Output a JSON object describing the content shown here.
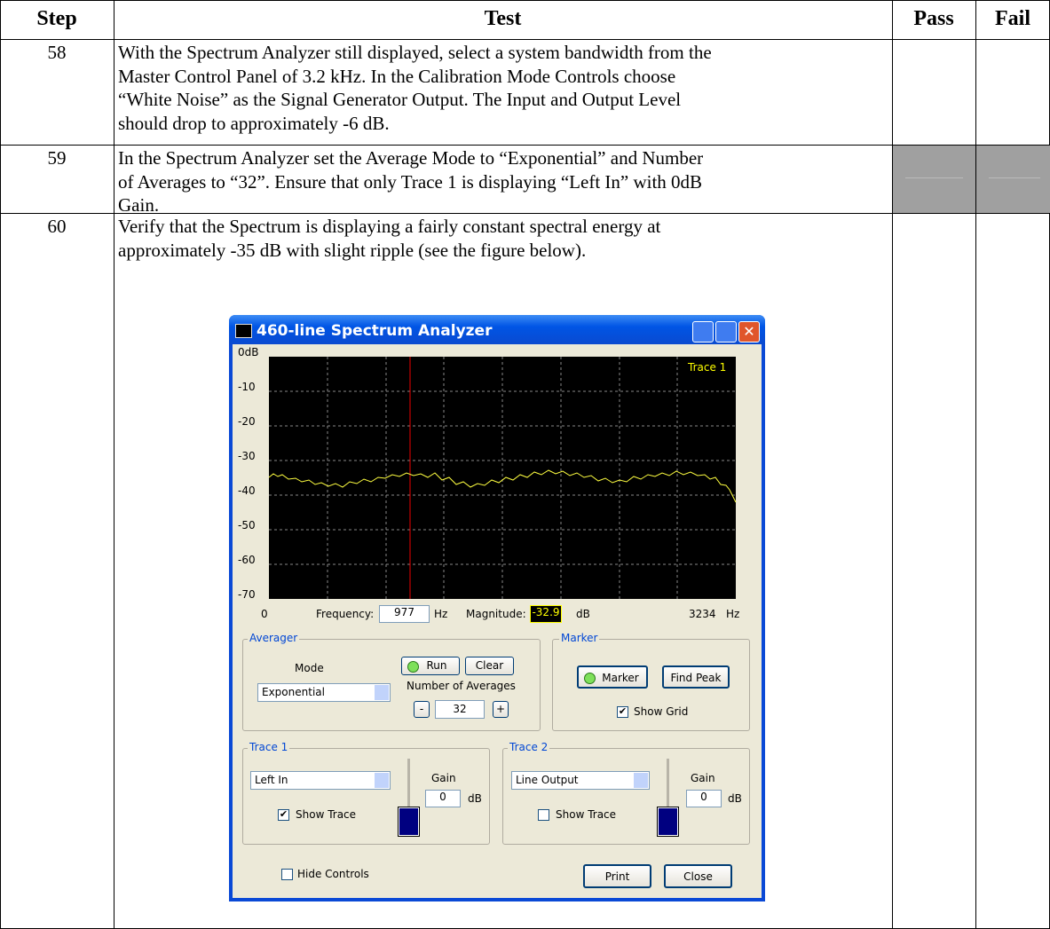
{
  "table": {
    "headers": [
      "Step",
      "Test",
      "Pass",
      "Fail"
    ],
    "rows": [
      {
        "step": "58",
        "lines": [
          "With the Spectrum Analyzer still displayed, select a system bandwidth from the",
          "Master Control Panel of 3.2 kHz.  In the Calibration Mode Controls choose",
          "“White Noise” as the Signal Generator Output.  The Input and Output Level",
          "should drop to approximately -6 dB."
        ]
      },
      {
        "step": "59",
        "lines": [
          "In the Spectrum Analyzer set the Average Mode to “Exponential” and Number",
          "of Averages to “32”.  Ensure that only Trace 1 is displaying “Left In” with 0dB",
          "Gain."
        ]
      },
      {
        "step": "60",
        "lines": [
          "Verify that the Spectrum is displaying a fairly constant spectral energy at",
          "approximately -35 dB with slight ripple (see the figure below)."
        ]
      }
    ]
  },
  "screenshot": {
    "title": "460-line Spectrum Analyzer",
    "y_labels": [
      "0dB",
      "-10",
      "-20",
      "-30",
      "-40",
      "-50",
      "-60",
      "-70"
    ],
    "trace_label": "Trace 1",
    "x_start": "0",
    "frequency_label": "Frequency:",
    "frequency": "977",
    "frequency_unit": "Hz",
    "magnitude_label": "Magnitude:",
    "magnitude": "-32.9",
    "magnitude_unit": "dB",
    "x_end": "3234",
    "x_end_unit": "Hz",
    "averager": {
      "title": "Averager",
      "mode_label": "Mode",
      "mode": "Exponential",
      "run": "Run",
      "clear": "Clear",
      "averages_label": "Number of Averages",
      "minus": "-",
      "averages": "32",
      "plus": "+"
    },
    "marker": {
      "title": "Marker",
      "marker_button": "Marker",
      "find_peak": "Find Peak",
      "show_grid": "Show Grid"
    },
    "trace1": {
      "title": "Trace 1",
      "source": "Left In",
      "gain_label": "Gain",
      "gain": "0",
      "gain_unit": "dB",
      "show_trace": "Show Trace"
    },
    "trace2": {
      "title": "Trace 2",
      "source": "Line Output",
      "gain_label": "Gain",
      "gain": "0",
      "gain_unit": "dB",
      "show_trace": "Show Trace"
    },
    "hide_controls": "Hide Controls",
    "print": "Print",
    "close": "Close"
  }
}
